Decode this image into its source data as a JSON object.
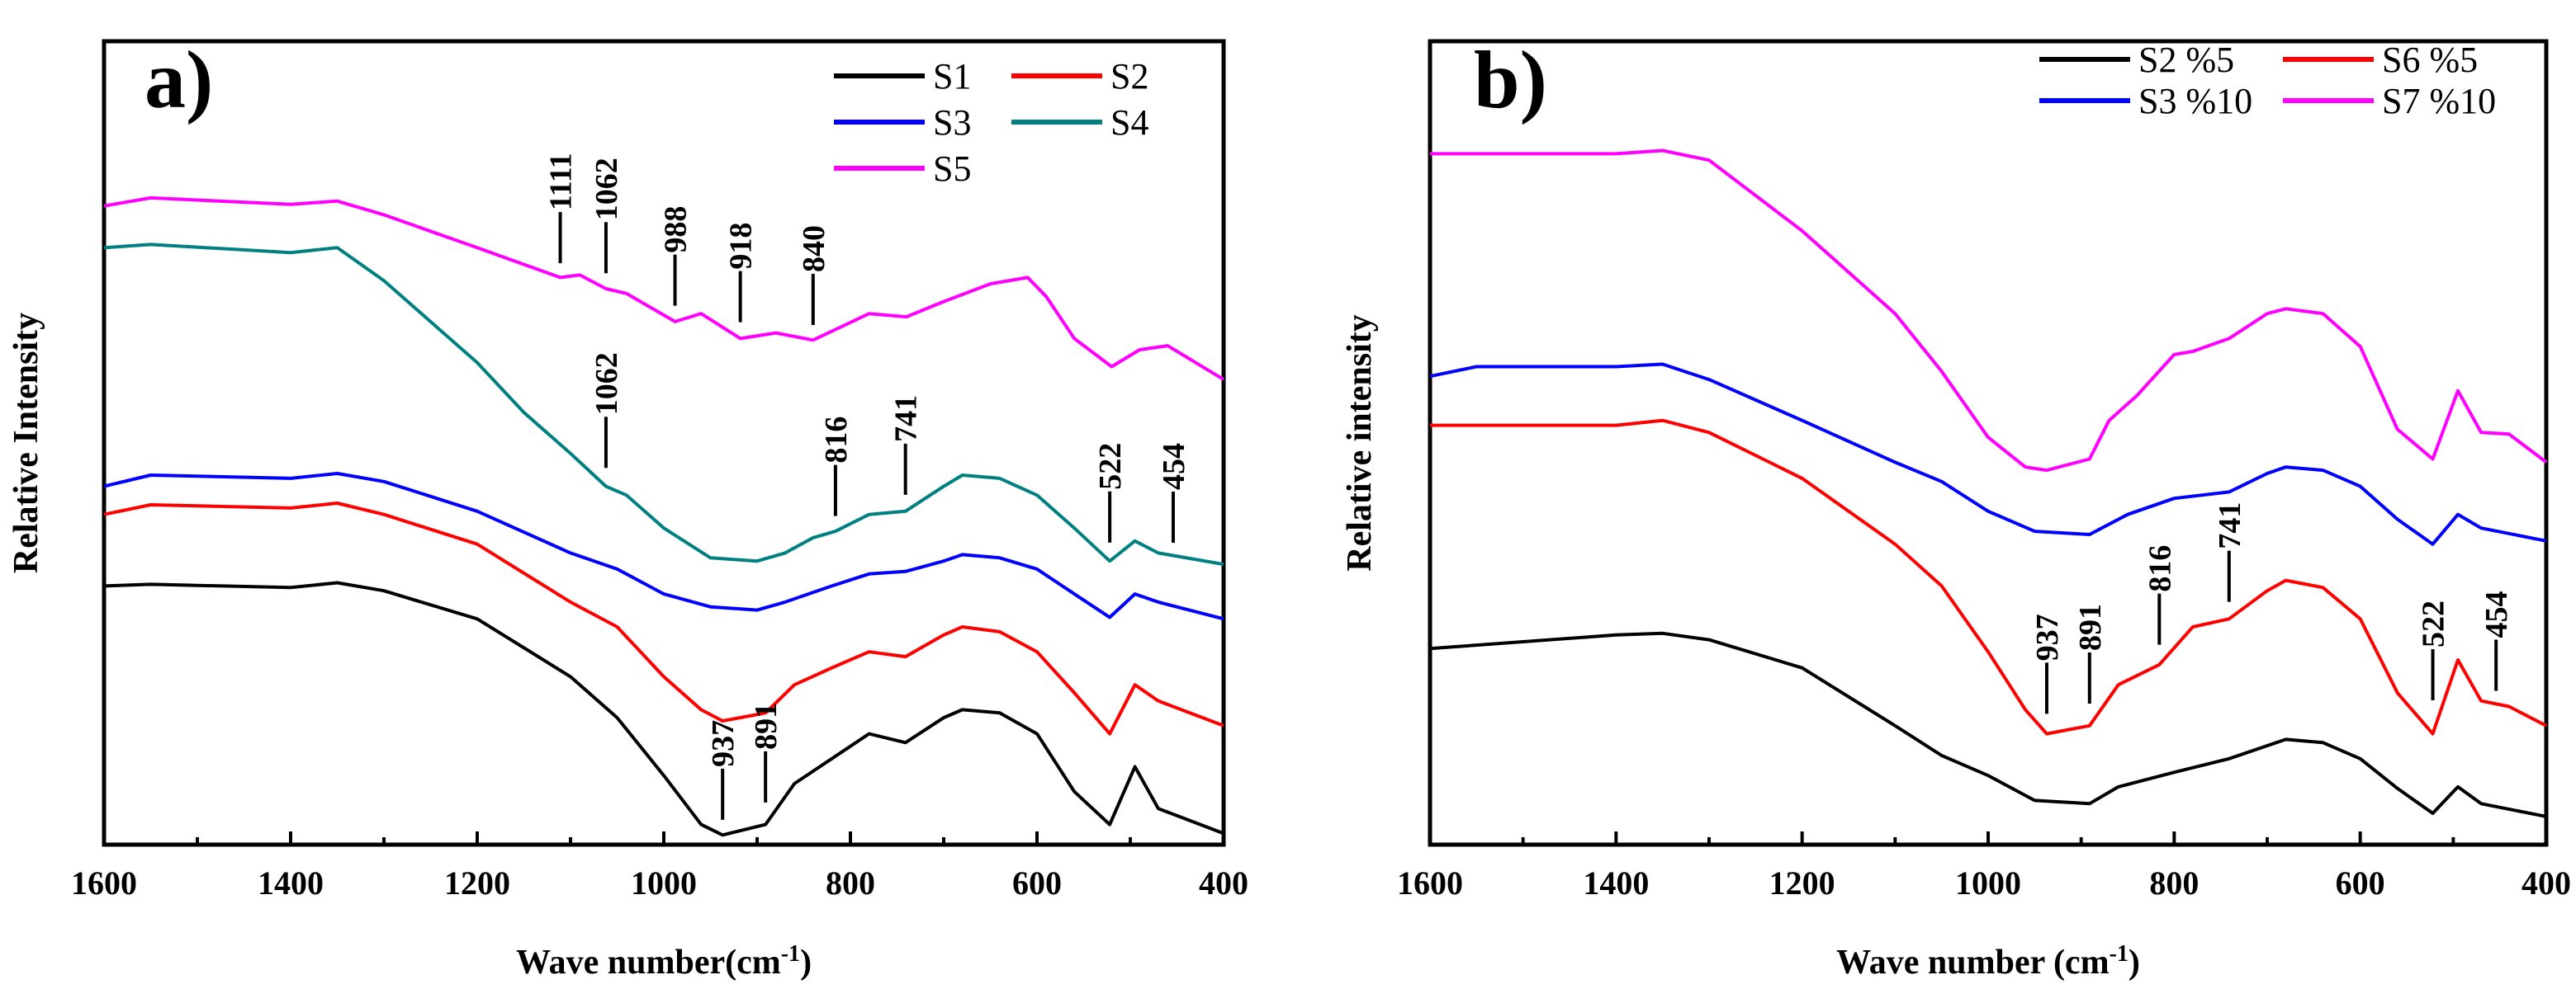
{
  "chart_data": [
    {
      "type": "line",
      "panel_label": "a)",
      "xlabel": "Wave number(cm",
      "xlabel_sup": "-1",
      "xlabel_close": ")",
      "ylabel": "Relative Intensity",
      "xlim": [
        1600,
        400
      ],
      "ylim": [
        0,
        100
      ],
      "xticks": [
        1600,
        1400,
        1200,
        1000,
        800,
        600,
        400
      ],
      "legend_placement": "top-right",
      "legend_columns": 2,
      "series": [
        {
          "name": "S1",
          "color": "#000000",
          "x": [
            1600,
            1550,
            1400,
            1350,
            1300,
            1200,
            1100,
            1050,
            1000,
            960,
            937,
            891,
            860,
            820,
            780,
            741,
            700,
            680,
            640,
            600,
            560,
            522,
            495,
            470,
            400
          ],
          "y": [
            32.2,
            32.4,
            32.0,
            32.6,
            31.6,
            28.1,
            20.9,
            15.8,
            8.6,
            2.5,
            1.2,
            2.5,
            7.6,
            10.7,
            13.8,
            12.7,
            15.8,
            16.8,
            16.4,
            13.8,
            6.6,
            2.5,
            9.7,
            4.5,
            1.4
          ]
        },
        {
          "name": "S2",
          "color": "#ff0000",
          "x": [
            1600,
            1550,
            1400,
            1350,
            1300,
            1200,
            1100,
            1050,
            1000,
            960,
            937,
            891,
            860,
            820,
            780,
            741,
            700,
            680,
            640,
            600,
            560,
            522,
            495,
            470,
            400
          ],
          "y": [
            41.1,
            42.3,
            41.9,
            42.5,
            41.1,
            37.4,
            30.2,
            27.1,
            20.9,
            16.8,
            15.4,
            16.4,
            19.9,
            22.0,
            24.0,
            23.4,
            26.1,
            27.1,
            26.5,
            24.0,
            18.9,
            13.8,
            19.9,
            17.9,
            14.8
          ]
        },
        {
          "name": "S3",
          "color": "#0000ff",
          "x": [
            1600,
            1550,
            1400,
            1350,
            1300,
            1200,
            1100,
            1050,
            1000,
            950,
            900,
            870,
            820,
            780,
            741,
            700,
            680,
            640,
            600,
            560,
            522,
            495,
            470,
            400
          ],
          "y": [
            44.6,
            46.0,
            45.6,
            46.2,
            45.2,
            41.5,
            36.3,
            34.3,
            31.2,
            29.6,
            29.2,
            30.2,
            32.2,
            33.7,
            34.0,
            35.3,
            36.1,
            35.7,
            34.3,
            31.2,
            28.3,
            31.2,
            30.2,
            28.1
          ]
        },
        {
          "name": "S4",
          "color": "#008080",
          "x": [
            1600,
            1550,
            1400,
            1350,
            1300,
            1200,
            1150,
            1100,
            1062,
            1040,
            1000,
            950,
            900,
            870,
            840,
            816,
            780,
            741,
            700,
            680,
            640,
            600,
            560,
            522,
            495,
            470,
            400
          ],
          "y": [
            74.3,
            74.7,
            73.7,
            74.3,
            70.2,
            60.0,
            53.8,
            48.7,
            44.6,
            43.5,
            39.4,
            35.7,
            35.3,
            36.3,
            38.2,
            39.0,
            41.1,
            41.5,
            44.6,
            46.0,
            45.6,
            43.5,
            39.4,
            35.3,
            37.8,
            36.3,
            34.9
          ]
        },
        {
          "name": "S5",
          "color": "#ff00ff",
          "x": [
            1600,
            1550,
            1400,
            1350,
            1300,
            1200,
            1111,
            1090,
            1062,
            1040,
            988,
            960,
            918,
            880,
            840,
            780,
            740,
            700,
            650,
            610,
            590,
            560,
            520,
            490,
            460,
            400
          ],
          "y": [
            79.5,
            80.5,
            79.7,
            80.1,
            78.4,
            74.3,
            70.6,
            70.9,
            69.2,
            68.6,
            65.1,
            66.1,
            63.0,
            63.7,
            62.8,
            66.1,
            65.7,
            67.6,
            69.8,
            70.6,
            68.2,
            63.0,
            59.5,
            61.6,
            62.1,
            57.9
          ]
        }
      ],
      "annotations": [
        {
          "label": "1111",
          "x": 1111,
          "series": "S5"
        },
        {
          "label": "1062",
          "x": 1062,
          "series": "S5"
        },
        {
          "label": "988",
          "x": 988,
          "series": "S5"
        },
        {
          "label": "918",
          "x": 918,
          "series": "S5"
        },
        {
          "label": "840",
          "x": 840,
          "series": "S5"
        },
        {
          "label": "1062",
          "x": 1062,
          "series": "S4"
        },
        {
          "label": "816",
          "x": 816,
          "series": "S4"
        },
        {
          "label": "741",
          "x": 741,
          "series": "S4"
        },
        {
          "label": "522",
          "x": 522,
          "series": "S4"
        },
        {
          "label": "454",
          "x": 454,
          "series": "S4"
        },
        {
          "label": "937",
          "x": 937,
          "series": "S1"
        },
        {
          "label": "891",
          "x": 891,
          "series": "S1"
        }
      ]
    },
    {
      "type": "line",
      "panel_label": "b)",
      "xlabel": "Wave number (cm",
      "xlabel_sup": "-1",
      "xlabel_close": ")",
      "ylabel": "Relative intensity",
      "xlim": [
        1600,
        400
      ],
      "ylim": [
        0,
        100
      ],
      "xticks": [
        1600,
        1400,
        1200,
        1000,
        800,
        600,
        400
      ],
      "legend_placement": "top-right",
      "legend_columns": 2,
      "series": [
        {
          "name": "S2 %5",
          "color": "#000000",
          "x": [
            1600,
            1400,
            1350,
            1300,
            1200,
            1100,
            1050,
            1000,
            950,
            891,
            860,
            800,
            741,
            680,
            640,
            600,
            560,
            522,
            495,
            470,
            400
          ],
          "y": [
            24.4,
            26.1,
            26.3,
            25.5,
            22.0,
            14.8,
            11.1,
            8.6,
            5.5,
            5.1,
            7.2,
            9.0,
            10.7,
            13.1,
            12.7,
            10.7,
            7.0,
            3.9,
            7.2,
            5.1,
            3.5
          ]
        },
        {
          "name": "S6 %5",
          "color": "#ff0000",
          "x": [
            1600,
            1400,
            1350,
            1300,
            1200,
            1100,
            1050,
            1000,
            960,
            937,
            891,
            860,
            816,
            780,
            741,
            700,
            680,
            640,
            600,
            560,
            522,
            495,
            470,
            440,
            400
          ],
          "y": [
            52.2,
            52.2,
            52.8,
            51.3,
            45.6,
            37.4,
            32.2,
            24.0,
            16.8,
            13.8,
            14.8,
            19.9,
            22.4,
            27.1,
            28.1,
            31.6,
            32.9,
            32.0,
            28.1,
            18.9,
            13.8,
            23.0,
            17.9,
            17.2,
            14.8
          ]
        },
        {
          "name": "S3 %10",
          "color": "#0000ff",
          "x": [
            1600,
            1550,
            1400,
            1350,
            1300,
            1200,
            1100,
            1050,
            1000,
            950,
            891,
            850,
            800,
            741,
            700,
            680,
            640,
            600,
            560,
            522,
            495,
            470,
            400
          ],
          "y": [
            58.3,
            59.5,
            59.5,
            59.8,
            57.9,
            52.8,
            47.6,
            45.2,
            41.5,
            39.0,
            38.6,
            41.1,
            43.1,
            43.9,
            46.2,
            47.0,
            46.6,
            44.6,
            40.5,
            37.4,
            41.1,
            39.4,
            37.8
          ]
        },
        {
          "name": "S7 %10",
          "color": "#ff00ff",
          "x": [
            1600,
            1400,
            1350,
            1300,
            1200,
            1100,
            1050,
            1000,
            960,
            937,
            891,
            870,
            840,
            800,
            780,
            741,
            700,
            680,
            640,
            600,
            560,
            522,
            495,
            470,
            440,
            400
          ],
          "y": [
            86.0,
            86.0,
            86.4,
            85.2,
            76.4,
            66.1,
            58.9,
            50.7,
            47.0,
            46.6,
            48.0,
            52.8,
            55.9,
            61.0,
            61.4,
            63.0,
            66.1,
            66.7,
            66.1,
            62.0,
            51.7,
            48.0,
            56.5,
            51.3,
            51.1,
            47.6
          ]
        }
      ],
      "annotations": [
        {
          "label": "937",
          "x": 937,
          "series": "S6 %5"
        },
        {
          "label": "891",
          "x": 891,
          "series": "S6 %5"
        },
        {
          "label": "816",
          "x": 816,
          "series": "S6 %5"
        },
        {
          "label": "741",
          "x": 741,
          "series": "S6 %5"
        },
        {
          "label": "522",
          "x": 522,
          "series": "S6 %5"
        },
        {
          "label": "454",
          "x": 454,
          "series": "S6 %5"
        }
      ]
    }
  ]
}
